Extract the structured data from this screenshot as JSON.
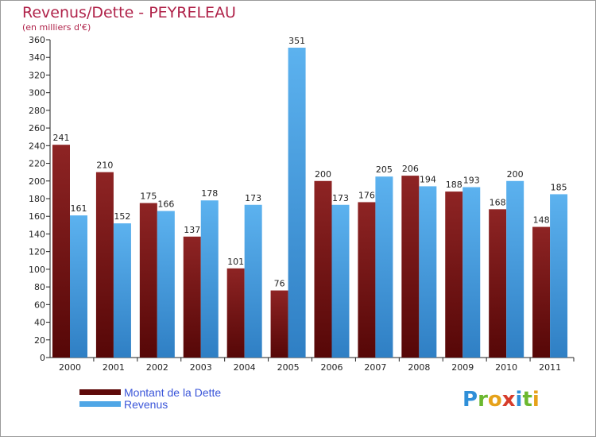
{
  "title": "Revenus/Dette - PEYRELEAU",
  "subtitle": "(en milliers d'€)",
  "logo": "Proxiti",
  "colors": {
    "dette": "#7a1818",
    "revenus": "#4fa6e6",
    "title": "#b0234a",
    "legend_text": "#3a55d9"
  },
  "legend": [
    {
      "label": "Montant de la Dette",
      "color": "#6a0f0f"
    },
    {
      "label": "Revenus",
      "color": "#4fa6e6"
    }
  ],
  "chart_data": {
    "type": "bar",
    "categories": [
      "2000",
      "2001",
      "2002",
      "2003",
      "2004",
      "2005",
      "2006",
      "2007",
      "2008",
      "2009",
      "2010",
      "2011"
    ],
    "series": [
      {
        "name": "Montant de la Dette",
        "values": [
          241,
          210,
          175,
          137,
          101,
          76,
          200,
          176,
          206,
          188,
          168,
          148
        ]
      },
      {
        "name": "Revenus",
        "values": [
          161,
          152,
          166,
          178,
          173,
          351,
          173,
          205,
          194,
          193,
          200,
          185
        ]
      }
    ],
    "ylim": [
      0,
      360
    ],
    "yticks": [
      0,
      20,
      40,
      60,
      80,
      100,
      120,
      140,
      160,
      180,
      200,
      220,
      240,
      260,
      280,
      300,
      320,
      340,
      360
    ],
    "grid": false,
    "legend_position": "bottom-left"
  }
}
